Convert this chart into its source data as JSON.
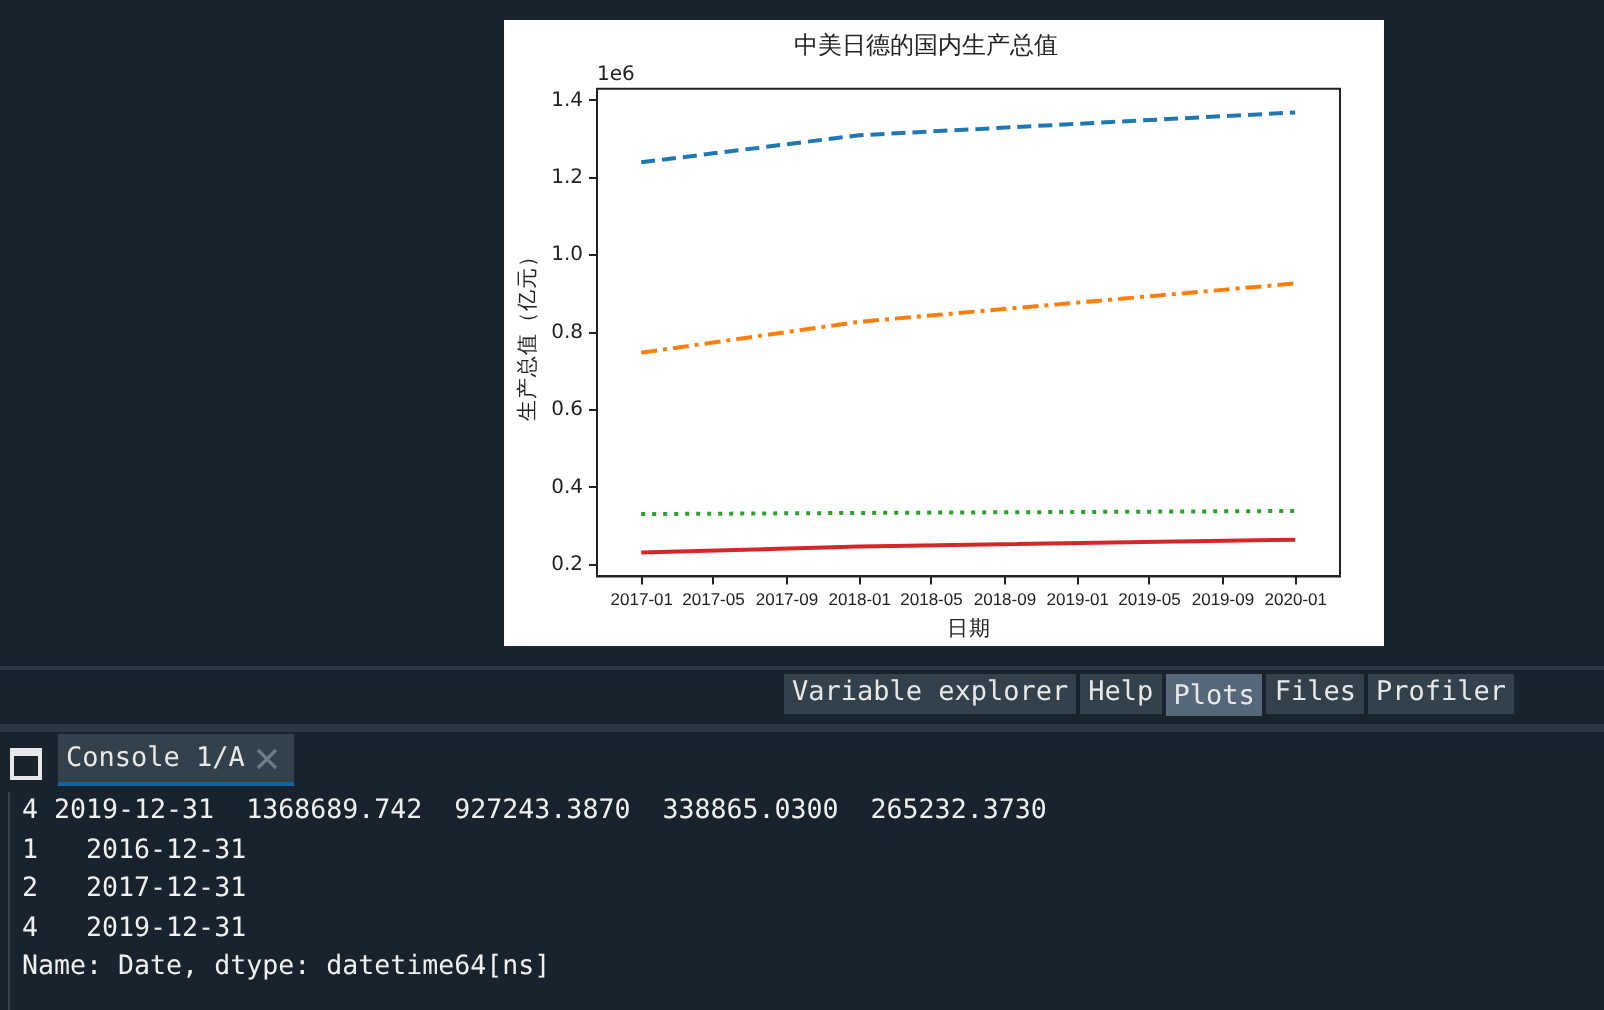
{
  "chart_data": {
    "type": "line",
    "title": "中美日德的国内生产总值",
    "xlabel": "日期",
    "ylabel": "生产总值（亿元）",
    "x": [
      "2016-12-31",
      "2017-12-31",
      "2019-12-31"
    ],
    "series": [
      {
        "color": "#1f77b4",
        "line_style": "dashed",
        "values": [
          1.24,
          1.31,
          1.369
        ]
      },
      {
        "color": "#ff7f0e",
        "line_style": "dashdot",
        "values": [
          0.748,
          0.828,
          0.927
        ]
      },
      {
        "color": "#2ca02c",
        "line_style": "dotted",
        "values": [
          0.331,
          0.334,
          0.339
        ]
      },
      {
        "color": "#d62728",
        "line_style": "solid",
        "values": [
          0.232,
          0.247,
          0.265
        ]
      }
    ],
    "xlim": [
      "2016-10-18",
      "2020-03-15"
    ],
    "xticks": [
      "2017-01",
      "2017-05",
      "2017-09",
      "2018-01",
      "2018-05",
      "2018-09",
      "2019-01",
      "2019-05",
      "2019-09",
      "2020-01"
    ],
    "ylim": [
      0.17,
      1.43
    ],
    "yticks": [
      0.2,
      0.4,
      0.6,
      0.8,
      {
        "value": 1,
        "label": "1.0"
      },
      1.2,
      1.4
    ],
    "grid": false,
    "legend": false,
    "annotations": [
      "1e6",
      "Variable explorer",
      "Help",
      "Plots",
      "Files",
      "Profiler",
      "Console 1/A",
      "4 2019-12-31  1368689.742  927243.3870  338865.0300  265232.3730",
      "1   2016-12-31",
      "2   2017-12-31",
      "4   2019-12-31",
      "Name: Date, dtype: datetime64[ns]"
    ]
  }
}
